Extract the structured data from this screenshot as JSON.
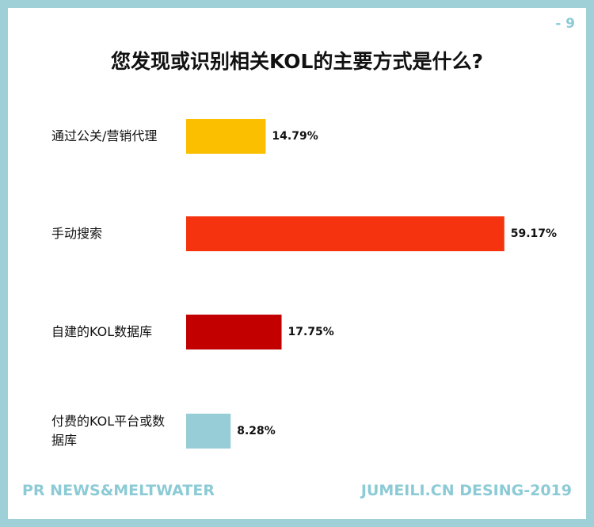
{
  "page_number": "- 9",
  "chart_data": {
    "type": "bar",
    "orientation": "horizontal",
    "title": "您发现或识别相关KOL的主要方式是什么?",
    "categories": [
      "通过公关/营销代理",
      "手动搜索",
      "自建的KOL数据库",
      "付费的KOL平台或数据库"
    ],
    "values": [
      14.79,
      59.17,
      17.75,
      8.28
    ],
    "value_labels": [
      "14.79%",
      "59.17%",
      "17.75%",
      "8.28%"
    ],
    "colors": [
      "#fbbf00",
      "#f5330f",
      "#c20000",
      "#97cdd6"
    ]
  },
  "footer": {
    "left": "PR NEWS&MELTWATER",
    "right": "JUMEILI.CN DESING-2019"
  }
}
